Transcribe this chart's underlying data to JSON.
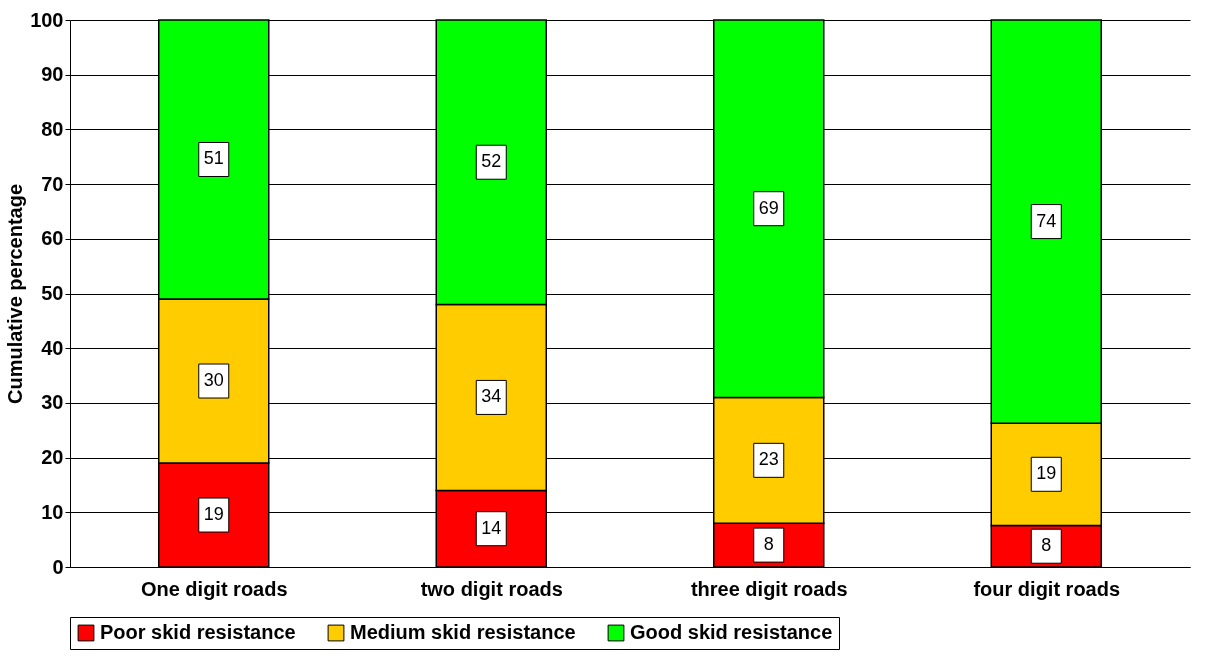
{
  "chart_data": {
    "type": "bar",
    "stacked": true,
    "ylabel": "Cumulative percentage",
    "categories": [
      "One digit roads",
      "two digit roads",
      "three digit roads",
      "four digit roads"
    ],
    "series": [
      {
        "name": "Poor skid resistance",
        "color": "#ff0000",
        "values": [
          19,
          14,
          8,
          7.6
        ],
        "value_labels": [
          "19",
          "14",
          "8",
          "8"
        ]
      },
      {
        "name": "Medium skid resistance",
        "color": "#ffcc00",
        "values": [
          30,
          34,
          23,
          18.7
        ],
        "value_labels": [
          "30",
          "34",
          "23",
          "19"
        ]
      },
      {
        "name": "Good skid resistance",
        "color": "#00ff00",
        "values": [
          51,
          52,
          69,
          73.7
        ],
        "value_labels": [
          "51",
          "52",
          "69",
          "74"
        ]
      }
    ],
    "ylim": [
      0,
      100
    ],
    "yticks": [
      0,
      10,
      20,
      30,
      40,
      50,
      60,
      70,
      80,
      90,
      100
    ],
    "grid": "y",
    "legend": "bottom"
  }
}
